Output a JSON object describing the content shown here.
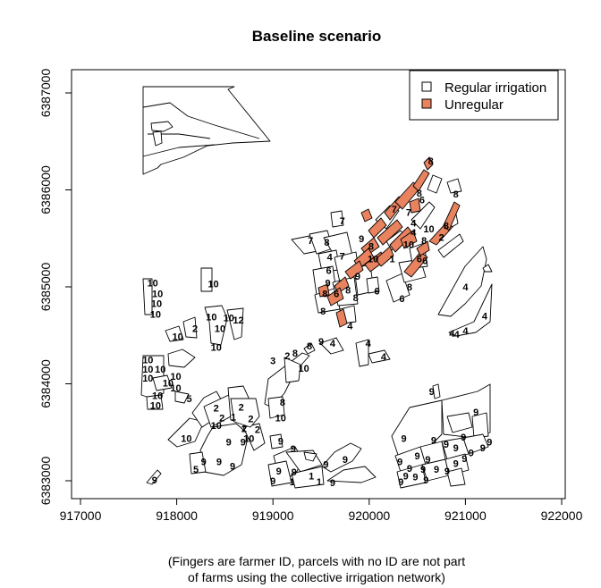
{
  "title": "Baseline scenario",
  "caption": {
    "line1": "(Fingers are farmer ID, parcels with no ID are not part",
    "line2": "of farms using the collective irrigation network)"
  },
  "x_axis": {
    "range": [
      917000,
      922000
    ],
    "ticks": [
      917000,
      918000,
      919000,
      920000,
      921000,
      922000
    ],
    "tick_labels": [
      "917000",
      "918000",
      "919000",
      "920000",
      "921000",
      "922000"
    ]
  },
  "y_axis": {
    "range": [
      6383000,
      6387000
    ],
    "ticks": [
      6383000,
      6384000,
      6385000,
      6386000,
      6387000
    ],
    "tick_labels": [
      "6383000",
      "6384000",
      "6385000",
      "6386000",
      "6387000"
    ]
  },
  "legend": {
    "position": "top-right",
    "items": [
      {
        "label": "Regular irrigation",
        "color": "#ffffff"
      },
      {
        "label": "Unregular",
        "color": "#e8825f"
      }
    ]
  },
  "colors": {
    "regular": "#ffffff",
    "unregular": "#e8825f",
    "stroke": "#000000"
  },
  "chart_data": {
    "type": "map",
    "labels": [
      {
        "t": "10",
        "x": 917750,
        "y": 6385040
      },
      {
        "t": "10",
        "x": 917800,
        "y": 6384930
      },
      {
        "t": "10",
        "x": 917790,
        "y": 6384830
      },
      {
        "t": "10",
        "x": 917780,
        "y": 6384720
      },
      {
        "t": "10",
        "x": 918380,
        "y": 6385030
      },
      {
        "t": "10",
        "x": 918360,
        "y": 6384690
      },
      {
        "t": "10",
        "x": 918540,
        "y": 6384680
      },
      {
        "t": "12",
        "x": 918640,
        "y": 6384660
      },
      {
        "t": "10",
        "x": 918450,
        "y": 6384570
      },
      {
        "t": "10",
        "x": 918410,
        "y": 6384380
      },
      {
        "t": "10",
        "x": 918010,
        "y": 6384490
      },
      {
        "t": "2",
        "x": 918190,
        "y": 6384570
      },
      {
        "t": "10",
        "x": 917700,
        "y": 6384250
      },
      {
        "t": "10",
        "x": 917700,
        "y": 6384150
      },
      {
        "t": "10",
        "x": 917700,
        "y": 6384060
      },
      {
        "t": "10",
        "x": 917830,
        "y": 6384150
      },
      {
        "t": "10",
        "x": 917990,
        "y": 6384080
      },
      {
        "t": "10",
        "x": 917910,
        "y": 6384010
      },
      {
        "t": "10",
        "x": 917990,
        "y": 6383960
      },
      {
        "t": "10",
        "x": 917800,
        "y": 6383880
      },
      {
        "t": "10",
        "x": 917780,
        "y": 6383780
      },
      {
        "t": "5",
        "x": 918130,
        "y": 6383850
      },
      {
        "t": "10",
        "x": 918100,
        "y": 6383440
      },
      {
        "t": "2",
        "x": 918410,
        "y": 6383750
      },
      {
        "t": "10",
        "x": 918410,
        "y": 6383570
      },
      {
        "t": "2",
        "x": 918470,
        "y": 6383650
      },
      {
        "t": "1",
        "x": 918590,
        "y": 6383660
      },
      {
        "t": "2",
        "x": 918670,
        "y": 6383760
      },
      {
        "t": "2",
        "x": 918700,
        "y": 6383540
      },
      {
        "t": "2",
        "x": 918770,
        "y": 6383640
      },
      {
        "t": "2",
        "x": 918840,
        "y": 6383530
      },
      {
        "t": "9",
        "x": 918540,
        "y": 6383400
      },
      {
        "t": "9",
        "x": 918690,
        "y": 6383400
      },
      {
        "t": "10",
        "x": 918750,
        "y": 6383440
      },
      {
        "t": "9",
        "x": 918440,
        "y": 6383200
      },
      {
        "t": "9",
        "x": 918580,
        "y": 6383150
      },
      {
        "t": "9",
        "x": 918280,
        "y": 6383200
      },
      {
        "t": "5",
        "x": 918200,
        "y": 6383120
      },
      {
        "t": "9",
        "x": 917770,
        "y": 6383010
      },
      {
        "t": "3",
        "x": 919000,
        "y": 6384240
      },
      {
        "t": "2",
        "x": 919150,
        "y": 6384290
      },
      {
        "t": "8",
        "x": 919230,
        "y": 6384320
      },
      {
        "t": "10",
        "x": 919320,
        "y": 6384160
      },
      {
        "t": "8",
        "x": 919100,
        "y": 6383810
      },
      {
        "t": "10",
        "x": 919080,
        "y": 6383650
      },
      {
        "t": "9",
        "x": 919080,
        "y": 6383410
      },
      {
        "t": "9",
        "x": 919210,
        "y": 6383330
      },
      {
        "t": "9",
        "x": 919060,
        "y": 6383100
      },
      {
        "t": "9",
        "x": 919220,
        "y": 6383090
      },
      {
        "t": "1",
        "x": 919200,
        "y": 6382990
      },
      {
        "t": "9",
        "x": 919000,
        "y": 6383000
      },
      {
        "t": "1",
        "x": 919400,
        "y": 6383050
      },
      {
        "t": "9",
        "x": 919550,
        "y": 6383170
      },
      {
        "t": "9",
        "x": 919750,
        "y": 6383220
      },
      {
        "t": "9",
        "x": 919620,
        "y": 6382980
      },
      {
        "t": "1",
        "x": 919480,
        "y": 6382990
      },
      {
        "t": "8",
        "x": 919380,
        "y": 6384390
      },
      {
        "t": "9",
        "x": 919500,
        "y": 6384440
      },
      {
        "t": "4",
        "x": 919620,
        "y": 6384420
      },
      {
        "t": "4",
        "x": 919990,
        "y": 6384420
      },
      {
        "t": "4",
        "x": 920150,
        "y": 6384280
      },
      {
        "t": "7",
        "x": 919390,
        "y": 6385480
      },
      {
        "t": "8",
        "x": 919560,
        "y": 6385460
      },
      {
        "t": "7",
        "x": 919720,
        "y": 6385320
      },
      {
        "t": "4",
        "x": 919590,
        "y": 6385310
      },
      {
        "t": "6",
        "x": 919580,
        "y": 6385170
      },
      {
        "t": "9",
        "x": 919570,
        "y": 6385040
      },
      {
        "t": "9",
        "x": 919880,
        "y": 6385110
      },
      {
        "t": "8",
        "x": 919540,
        "y": 6384930
      },
      {
        "t": "6",
        "x": 919660,
        "y": 6384930
      },
      {
        "t": "8",
        "x": 919780,
        "y": 6384970
      },
      {
        "t": "8",
        "x": 919520,
        "y": 6384750
      },
      {
        "t": "8",
        "x": 919860,
        "y": 6384890
      },
      {
        "t": "4",
        "x": 919800,
        "y": 6384600
      },
      {
        "t": "6",
        "x": 920080,
        "y": 6384960
      },
      {
        "t": "7",
        "x": 919720,
        "y": 6385680
      },
      {
        "t": "9",
        "x": 919920,
        "y": 6385500
      },
      {
        "t": "8",
        "x": 920020,
        "y": 6385420
      },
      {
        "t": "10",
        "x": 920040,
        "y": 6385290
      },
      {
        "t": "1",
        "x": 920240,
        "y": 6385290
      },
      {
        "t": "4",
        "x": 920460,
        "y": 6385560
      },
      {
        "t": "7",
        "x": 920260,
        "y": 6385800
      },
      {
        "t": "7",
        "x": 920410,
        "y": 6385770
      },
      {
        "t": "8",
        "x": 920520,
        "y": 6385970
      },
      {
        "t": "6",
        "x": 920550,
        "y": 6385900
      },
      {
        "t": "4",
        "x": 920460,
        "y": 6385660
      },
      {
        "t": "10",
        "x": 920620,
        "y": 6385600
      },
      {
        "t": "8",
        "x": 920640,
        "y": 6386300
      },
      {
        "t": "8",
        "x": 920900,
        "y": 6385960
      },
      {
        "t": "8",
        "x": 920800,
        "y": 6385630
      },
      {
        "t": "2",
        "x": 920750,
        "y": 6385510
      },
      {
        "t": "10",
        "x": 920410,
        "y": 6385440
      },
      {
        "t": "8",
        "x": 920570,
        "y": 6385480
      },
      {
        "t": "6",
        "x": 920520,
        "y": 6385290
      },
      {
        "t": "6",
        "x": 920580,
        "y": 6385270
      },
      {
        "t": "8",
        "x": 920420,
        "y": 6385000
      },
      {
        "t": "6",
        "x": 920340,
        "y": 6384880
      },
      {
        "t": "4",
        "x": 921000,
        "y": 6385000
      },
      {
        "t": "4",
        "x": 921200,
        "y": 6384700
      },
      {
        "t": "4",
        "x": 921000,
        "y": 6384550
      },
      {
        "t": "4",
        "x": 920910,
        "y": 6384510
      },
      {
        "t": "4",
        "x": 920860,
        "y": 6384520
      },
      {
        "t": "9",
        "x": 920650,
        "y": 6383920
      },
      {
        "t": "9",
        "x": 921110,
        "y": 6383710
      },
      {
        "t": "9",
        "x": 920360,
        "y": 6383440
      },
      {
        "t": "9",
        "x": 920670,
        "y": 6383420
      },
      {
        "t": "9",
        "x": 920980,
        "y": 6383450
      },
      {
        "t": "9",
        "x": 920800,
        "y": 6383380
      },
      {
        "t": "9",
        "x": 920900,
        "y": 6383340
      },
      {
        "t": "9",
        "x": 921060,
        "y": 6383290
      },
      {
        "t": "9",
        "x": 921180,
        "y": 6383340
      },
      {
        "t": "9",
        "x": 921250,
        "y": 6383400
      },
      {
        "t": "9",
        "x": 920500,
        "y": 6383260
      },
      {
        "t": "9",
        "x": 920610,
        "y": 6383220
      },
      {
        "t": "9",
        "x": 920900,
        "y": 6383180
      },
      {
        "t": "9",
        "x": 920990,
        "y": 6383230
      },
      {
        "t": "9",
        "x": 920320,
        "y": 6383200
      },
      {
        "t": "9",
        "x": 920420,
        "y": 6383130
      },
      {
        "t": "9",
        "x": 920560,
        "y": 6383120
      },
      {
        "t": "9",
        "x": 920700,
        "y": 6383120
      },
      {
        "t": "9",
        "x": 920810,
        "y": 6383100
      },
      {
        "t": "9",
        "x": 920380,
        "y": 6383050
      },
      {
        "t": "9",
        "x": 920480,
        "y": 6383040
      },
      {
        "t": "9",
        "x": 920330,
        "y": 6382990
      },
      {
        "t": "9",
        "x": 920590,
        "y": 6383010
      }
    ]
  }
}
